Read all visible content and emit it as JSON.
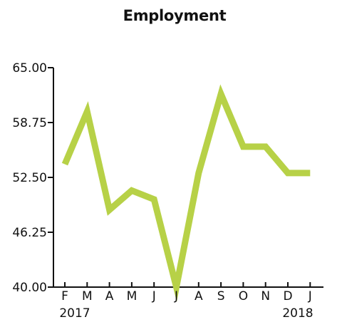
{
  "chart_data": {
    "type": "line",
    "title": "Employment",
    "xlabel": "",
    "ylabel": "",
    "categories": [
      "F",
      "M",
      "A",
      "M",
      "J",
      "J",
      "A",
      "S",
      "O",
      "N",
      "D",
      "J"
    ],
    "year_labels": [
      {
        "text": "2017",
        "category_index": 0
      },
      {
        "text": "2018",
        "category_index": 10
      }
    ],
    "series": [
      {
        "values": [
          54.0,
          60.0,
          48.8,
          51.0,
          50.0,
          40.0,
          53.0,
          62.0,
          56.0,
          56.0,
          53.0,
          53.0
        ],
        "color": "#b7d147"
      }
    ],
    "ylim": [
      40.0,
      65.0
    ],
    "yticks": [
      "40.00",
      "46.25",
      "52.50",
      "58.75",
      "65.00"
    ],
    "ytick_values": [
      40.0,
      46.25,
      52.5,
      58.75,
      65.0
    ],
    "grid": false,
    "legend": "none"
  }
}
